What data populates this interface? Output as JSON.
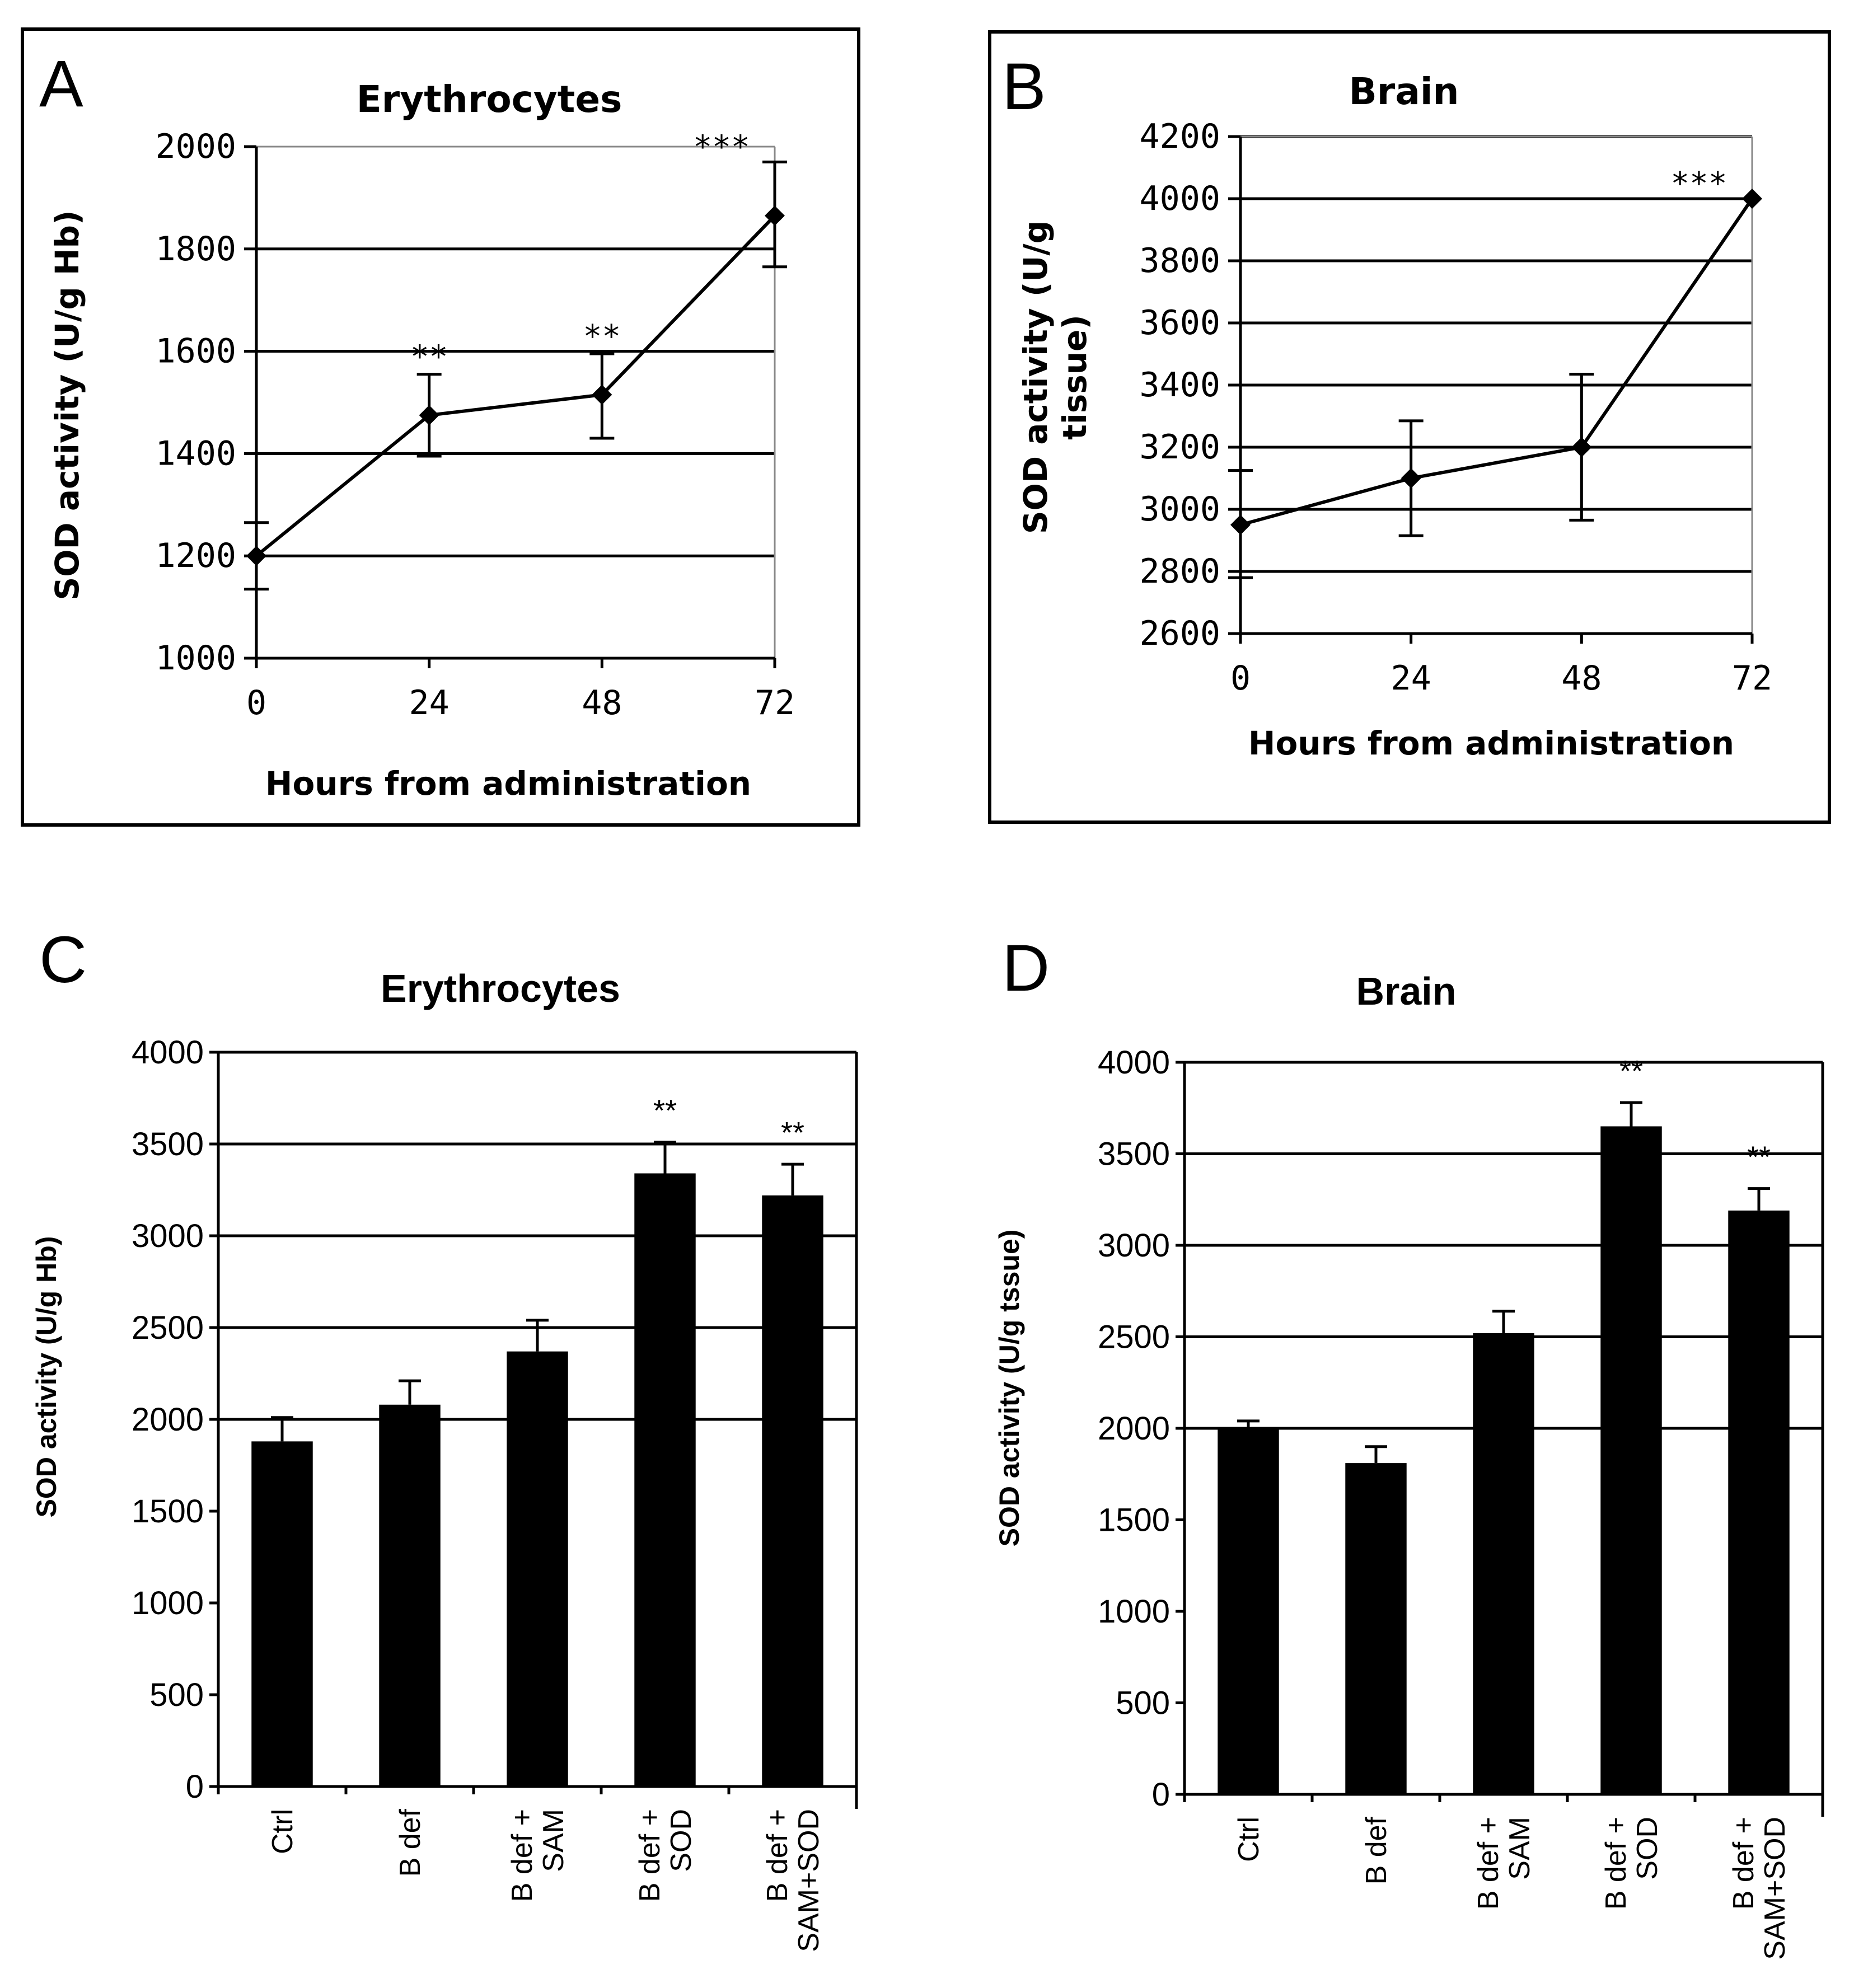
{
  "chart_data": [
    {
      "panel": "A",
      "type": "line",
      "title": "Erythrocytes",
      "xlabel": "Hours from administration",
      "ylabel": "SOD activity (U/g Hb)",
      "x": [
        0,
        24,
        48,
        72
      ],
      "x_tick_labels": [
        "0",
        "24",
        "48",
        "72"
      ],
      "y": [
        1200,
        1475,
        1515,
        1865
      ],
      "error": [
        [
          1135,
          1265
        ],
        [
          1395,
          1555
        ],
        [
          1430,
          1595
        ],
        [
          1765,
          1970
        ]
      ],
      "significance": [
        "",
        "**",
        "**",
        "***"
      ],
      "ylim": [
        1000,
        2000
      ],
      "yticks": [
        1000,
        1200,
        1400,
        1600,
        1800,
        2000
      ],
      "gridlines": [
        1200,
        1400,
        1600,
        1800
      ]
    },
    {
      "panel": "B",
      "type": "line",
      "title": "Brain",
      "xlabel": "Hours from administration",
      "ylabel": "SOD activity (U/g tissue)",
      "ylabel_lines": [
        "SOD activity (U/g",
        "tissue)"
      ],
      "x": [
        0,
        24,
        48,
        72
      ],
      "x_tick_labels": [
        "0",
        "24",
        "48",
        "72"
      ],
      "y": [
        2950,
        3100,
        3200,
        4000
      ],
      "error": [
        [
          2780,
          3125
        ],
        [
          2915,
          3285
        ],
        [
          2965,
          3435
        ],
        [
          4000,
          4000
        ]
      ],
      "significance": [
        "",
        "",
        "",
        "***"
      ],
      "ylim": [
        2600,
        4200
      ],
      "yticks": [
        2600,
        2800,
        3000,
        3200,
        3400,
        3600,
        3800,
        4000,
        4200
      ],
      "gridlines": [
        2800,
        3000,
        3200,
        3400,
        3600,
        3800,
        4000,
        4200
      ]
    },
    {
      "panel": "C",
      "type": "bar",
      "title": "Erythrocytes",
      "ylabel": "SOD activity  (U/g Hb)",
      "categories": [
        [
          "Ctrl"
        ],
        [
          "B def"
        ],
        [
          "B def +",
          "SAM"
        ],
        [
          "B def +",
          "SOD"
        ],
        [
          "B def +",
          "SAM+SOD"
        ]
      ],
      "values": [
        1880,
        2080,
        2370,
        3340,
        3220
      ],
      "error_upper": [
        2010,
        2210,
        2540,
        3510,
        3390
      ],
      "significance": [
        "",
        "",
        "",
        "**",
        "**"
      ],
      "ylim": [
        0,
        4000
      ],
      "yticks": [
        0,
        500,
        1000,
        1500,
        2000,
        2500,
        3000,
        3500,
        4000
      ],
      "gridlines": [
        2000,
        2500,
        3000,
        3500
      ]
    },
    {
      "panel": "D",
      "type": "bar",
      "title": "Brain",
      "ylabel": "SOD activity  (U/g tssue)",
      "categories": [
        [
          "Ctrl"
        ],
        [
          "B def"
        ],
        [
          "B def +",
          "SAM"
        ],
        [
          "B def +",
          "SOD"
        ],
        [
          "B def +",
          "SAM+SOD"
        ]
      ],
      "values": [
        2000,
        1810,
        2520,
        3650,
        3190
      ],
      "error_upper": [
        2040,
        1900,
        2640,
        3780,
        3310
      ],
      "significance": [
        "",
        "",
        "",
        "**",
        "**"
      ],
      "ylim": [
        0,
        4000
      ],
      "yticks": [
        0,
        500,
        1000,
        1500,
        2000,
        2500,
        3000,
        3500,
        4000
      ],
      "gridlines": [
        2000,
        2500,
        3000,
        3500
      ]
    }
  ]
}
